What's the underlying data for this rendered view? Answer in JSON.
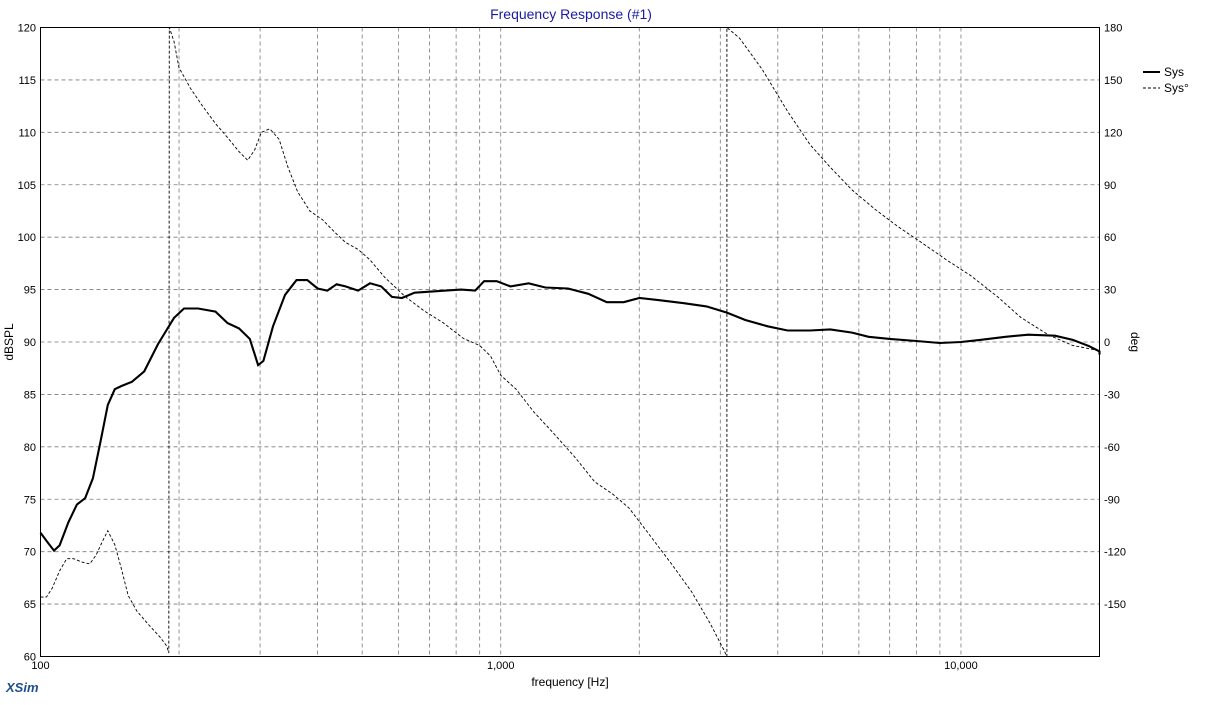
{
  "app": {
    "brand": "XSim"
  },
  "chart_data": {
    "type": "line",
    "title": "Frequency Response (#1)",
    "xlabel": "frequency [Hz]",
    "ylabel_left": "dBSPL",
    "ylabel_right": "deg",
    "x_scale": "log",
    "xlim": [
      100,
      20000
    ],
    "ylim_left": [
      60,
      120
    ],
    "ylim_right": [
      -180,
      180
    ],
    "x_tick_labels": [
      {
        "value": 100,
        "label": "100"
      },
      {
        "value": 1000,
        "label": "1,000"
      },
      {
        "value": 10000,
        "label": "10,000"
      }
    ],
    "y_left_ticks": [
      "60",
      "65",
      "70",
      "75",
      "80",
      "85",
      "90",
      "95",
      "100",
      "105",
      "110",
      "115",
      "120"
    ],
    "y_right_ticks": [
      "-150",
      "-120",
      "-90",
      "-60",
      "-30",
      "0",
      "30",
      "60",
      "90",
      "120",
      "150",
      "180"
    ],
    "grid": true,
    "legend_position": "top-right",
    "legend": [
      {
        "name": "Sys",
        "style": "solid-thick",
        "color": "#000000"
      },
      {
        "name": "Sys°",
        "style": "dashed-thin",
        "color": "#000000"
      }
    ],
    "series": [
      {
        "name": "Sys",
        "axis": "left",
        "points": [
          [
            100,
            71.8
          ],
          [
            104,
            70.8
          ],
          [
            107,
            70.1
          ],
          [
            110,
            70.6
          ],
          [
            115,
            72.8
          ],
          [
            120,
            74.5
          ],
          [
            125,
            75.1
          ],
          [
            130,
            77.0
          ],
          [
            135,
            80.5
          ],
          [
            140,
            84.0
          ],
          [
            145,
            85.5
          ],
          [
            150,
            85.8
          ],
          [
            158,
            86.2
          ],
          [
            168,
            87.2
          ],
          [
            180,
            89.8
          ],
          [
            195,
            92.3
          ],
          [
            205,
            93.2
          ],
          [
            220,
            93.2
          ],
          [
            240,
            92.9
          ],
          [
            255,
            91.8
          ],
          [
            270,
            91.3
          ],
          [
            285,
            90.3
          ],
          [
            297,
            87.8
          ],
          [
            305,
            88.2
          ],
          [
            320,
            91.5
          ],
          [
            340,
            94.5
          ],
          [
            360,
            95.9
          ],
          [
            380,
            95.9
          ],
          [
            400,
            95.1
          ],
          [
            420,
            94.9
          ],
          [
            440,
            95.5
          ],
          [
            460,
            95.3
          ],
          [
            490,
            94.9
          ],
          [
            520,
            95.6
          ],
          [
            550,
            95.3
          ],
          [
            580,
            94.3
          ],
          [
            610,
            94.2
          ],
          [
            650,
            94.7
          ],
          [
            700,
            94.8
          ],
          [
            760,
            94.9
          ],
          [
            820,
            95.0
          ],
          [
            880,
            94.9
          ],
          [
            920,
            95.8
          ],
          [
            980,
            95.8
          ],
          [
            1050,
            95.3
          ],
          [
            1150,
            95.6
          ],
          [
            1250,
            95.2
          ],
          [
            1400,
            95.1
          ],
          [
            1550,
            94.6
          ],
          [
            1700,
            93.8
          ],
          [
            1850,
            93.8
          ],
          [
            2000,
            94.2
          ],
          [
            2200,
            94.0
          ],
          [
            2500,
            93.7
          ],
          [
            2800,
            93.4
          ],
          [
            3100,
            92.8
          ],
          [
            3400,
            92.1
          ],
          [
            3800,
            91.5
          ],
          [
            4200,
            91.1
          ],
          [
            4700,
            91.1
          ],
          [
            5200,
            91.2
          ],
          [
            5800,
            90.9
          ],
          [
            6300,
            90.5
          ],
          [
            7000,
            90.3
          ],
          [
            8000,
            90.1
          ],
          [
            9000,
            89.9
          ],
          [
            10000,
            90.0
          ],
          [
            11000,
            90.2
          ],
          [
            12500,
            90.5
          ],
          [
            14000,
            90.7
          ],
          [
            16000,
            90.6
          ],
          [
            17500,
            90.2
          ],
          [
            19000,
            89.6
          ],
          [
            20500,
            89.1
          ],
          [
            22000,
            88.9
          ],
          [
            24000,
            88.8
          ]
        ]
      },
      {
        "name": "Sys°",
        "axis": "right",
        "points": [
          [
            100,
            -146
          ],
          [
            103,
            -146
          ],
          [
            106,
            -141
          ],
          [
            110,
            -131
          ],
          [
            114,
            -124
          ],
          [
            118,
            -124
          ],
          [
            123,
            -126
          ],
          [
            128,
            -127
          ],
          [
            132,
            -122
          ],
          [
            137,
            -113
          ],
          [
            140,
            -108
          ],
          [
            145,
            -116
          ],
          [
            150,
            -130
          ],
          [
            155,
            -145
          ],
          [
            162,
            -154
          ],
          [
            172,
            -162
          ],
          [
            182,
            -169
          ],
          [
            188,
            -174
          ],
          [
            190,
            -178
          ],
          [
            190.5,
            180
          ],
          [
            195,
            172
          ],
          [
            200,
            157
          ],
          [
            212,
            145
          ],
          [
            225,
            135
          ],
          [
            240,
            125
          ],
          [
            255,
            117
          ],
          [
            270,
            109
          ],
          [
            282,
            104
          ],
          [
            292,
            110
          ],
          [
            302,
            120
          ],
          [
            315,
            122
          ],
          [
            330,
            116
          ],
          [
            345,
            100
          ],
          [
            362,
            86
          ],
          [
            385,
            75
          ],
          [
            410,
            70
          ],
          [
            435,
            63
          ],
          [
            460,
            57
          ],
          [
            490,
            53
          ],
          [
            520,
            47
          ],
          [
            560,
            37
          ],
          [
            620,
            26
          ],
          [
            680,
            18
          ],
          [
            750,
            11
          ],
          [
            830,
            2
          ],
          [
            900,
            -2
          ],
          [
            950,
            -8
          ],
          [
            1000,
            -19
          ],
          [
            1080,
            -27
          ],
          [
            1180,
            -40
          ],
          [
            1300,
            -52
          ],
          [
            1450,
            -66
          ],
          [
            1600,
            -80
          ],
          [
            1750,
            -87
          ],
          [
            1900,
            -95
          ],
          [
            2100,
            -110
          ],
          [
            2350,
            -127
          ],
          [
            2600,
            -143
          ],
          [
            2850,
            -161
          ],
          [
            3050,
            -176
          ],
          [
            3100,
            -180
          ],
          [
            3101,
            180
          ],
          [
            3300,
            174
          ],
          [
            3700,
            156
          ],
          [
            4200,
            132
          ],
          [
            4700,
            113
          ],
          [
            5200,
            100
          ],
          [
            5800,
            87
          ],
          [
            6500,
            76
          ],
          [
            7300,
            66
          ],
          [
            8200,
            57
          ],
          [
            9300,
            47
          ],
          [
            10500,
            38
          ],
          [
            12000,
            26
          ],
          [
            13500,
            14
          ],
          [
            15500,
            4
          ],
          [
            17500,
            -2
          ],
          [
            20000,
            -5
          ],
          [
            22500,
            -7
          ],
          [
            24000,
            -9
          ]
        ]
      }
    ]
  }
}
